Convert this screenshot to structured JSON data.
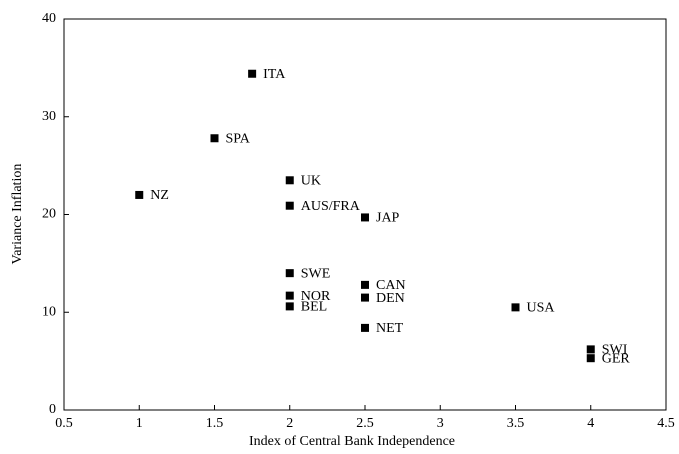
{
  "chart_data": {
    "type": "scatter",
    "xlabel": "Index of Central Bank Independence",
    "ylabel": "Variance Inflation",
    "labels": [
      "ITA",
      "SPA",
      "NZ",
      "UK",
      "AUS/FRA",
      "JAP",
      "SWE",
      "NOR",
      "BEL",
      "CAN",
      "DEN",
      "NET",
      "USA",
      "SWI",
      "GER"
    ],
    "x": [
      1.75,
      1.5,
      1,
      2,
      2,
      2.5,
      2,
      2,
      2,
      2.5,
      2.5,
      2.5,
      3.5,
      4,
      4
    ],
    "y": [
      34.4,
      27.8,
      22.0,
      23.5,
      20.9,
      19.7,
      14.0,
      11.7,
      10.6,
      12.8,
      11.5,
      8.4,
      10.5,
      6.2,
      5.3
    ],
    "color": "#000000",
    "xlim": [
      0.5,
      4.5
    ],
    "xticks": [
      0.5,
      1,
      1.5,
      2,
      2.5,
      3,
      3.5,
      4,
      4.5
    ],
    "ylim": [
      0,
      40
    ],
    "yticks": [
      0,
      10,
      20,
      30,
      40
    ],
    "grid": false
  }
}
